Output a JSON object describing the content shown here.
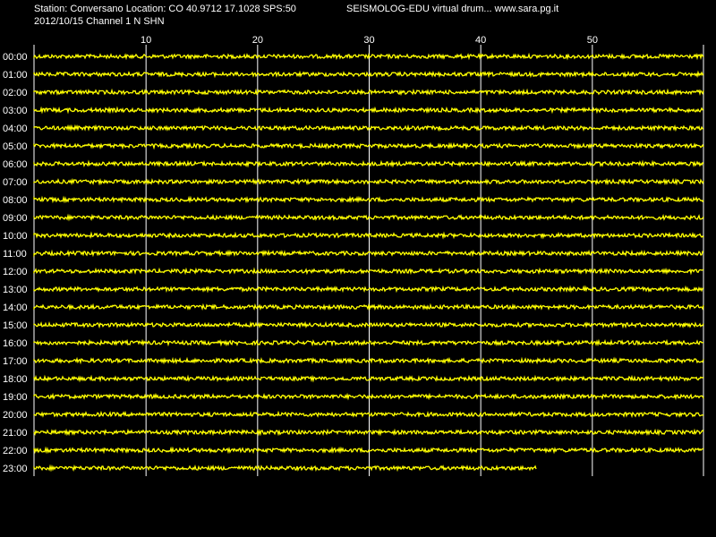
{
  "header": {
    "station_line": "Station: Conversano Location: CO 40.9712 17.1028 SPS:50",
    "title_line": "SEISMOLOG-EDU virtual drum... www.sara.pg.it",
    "date_line": "2012/10/15  Channel 1 N SHN"
  },
  "colors": {
    "background": "#000000",
    "trace": "#ffff00",
    "grid": "#ffffff",
    "text": "#ffffff"
  },
  "chart_data": {
    "type": "line",
    "title": "",
    "xlabel": "",
    "ylabel": "",
    "xlim": [
      0,
      60
    ],
    "x_ticks": [
      10,
      20,
      30,
      40,
      50
    ],
    "x_tick_labels": [
      "10",
      "20",
      "30",
      "40",
      "50"
    ],
    "grid": true,
    "series": [
      {
        "label": "00:00",
        "start": 0,
        "end": 60
      },
      {
        "label": "01:00",
        "start": 0,
        "end": 60
      },
      {
        "label": "02:00",
        "start": 0,
        "end": 60
      },
      {
        "label": "03:00",
        "start": 0,
        "end": 60
      },
      {
        "label": "04:00",
        "start": 0,
        "end": 60
      },
      {
        "label": "05:00",
        "start": 0,
        "end": 60
      },
      {
        "label": "06:00",
        "start": 0,
        "end": 60
      },
      {
        "label": "07:00",
        "start": 0,
        "end": 60
      },
      {
        "label": "08:00",
        "start": 0,
        "end": 60
      },
      {
        "label": "09:00",
        "start": 0,
        "end": 60
      },
      {
        "label": "10:00",
        "start": 0,
        "end": 60
      },
      {
        "label": "11:00",
        "start": 0,
        "end": 60
      },
      {
        "label": "12:00",
        "start": 0,
        "end": 60
      },
      {
        "label": "13:00",
        "start": 0,
        "end": 60
      },
      {
        "label": "14:00",
        "start": 0,
        "end": 60
      },
      {
        "label": "15:00",
        "start": 0,
        "end": 60
      },
      {
        "label": "16:00",
        "start": 0,
        "end": 60
      },
      {
        "label": "17:00",
        "start": 0,
        "end": 60
      },
      {
        "label": "18:00",
        "start": 0,
        "end": 60
      },
      {
        "label": "19:00",
        "start": 0,
        "end": 60
      },
      {
        "label": "20:00",
        "start": 0,
        "end": 60
      },
      {
        "label": "21:00",
        "start": 0,
        "end": 60
      },
      {
        "label": "22:00",
        "start": 0,
        "end": 60
      },
      {
        "label": "23:00",
        "start": 0,
        "end": 45
      }
    ]
  }
}
